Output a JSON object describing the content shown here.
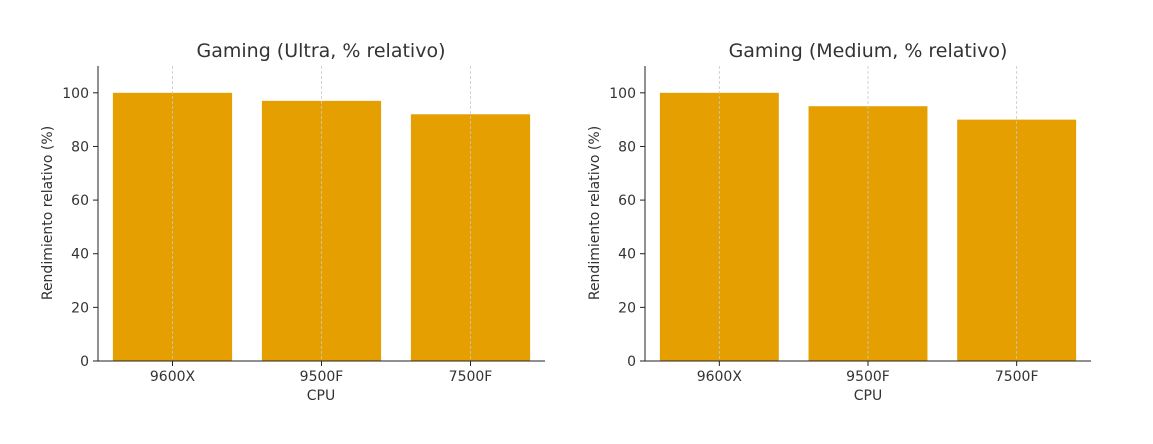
{
  "chart_data": [
    {
      "type": "bar",
      "title": "Gaming (Ultra, % relativo)",
      "xlabel": "CPU",
      "ylabel": "Rendimiento relativo (%)",
      "categories": [
        "9600X",
        "9500F",
        "7500F"
      ],
      "values": [
        100,
        97,
        92
      ],
      "ylim": [
        0,
        110
      ],
      "yticks": [
        0,
        20,
        40,
        60,
        80,
        100
      ],
      "grid": "x-dashed",
      "bar_color": "#E69F00"
    },
    {
      "type": "bar",
      "title": "Gaming (Medium, % relativo)",
      "xlabel": "CPU",
      "ylabel": "Rendimiento relativo (%)",
      "categories": [
        "9600X",
        "9500F",
        "7500F"
      ],
      "values": [
        100,
        95,
        90
      ],
      "ylim": [
        0,
        110
      ],
      "yticks": [
        0,
        20,
        40,
        60,
        80,
        100
      ],
      "grid": "x-dashed",
      "bar_color": "#E69F00"
    }
  ]
}
